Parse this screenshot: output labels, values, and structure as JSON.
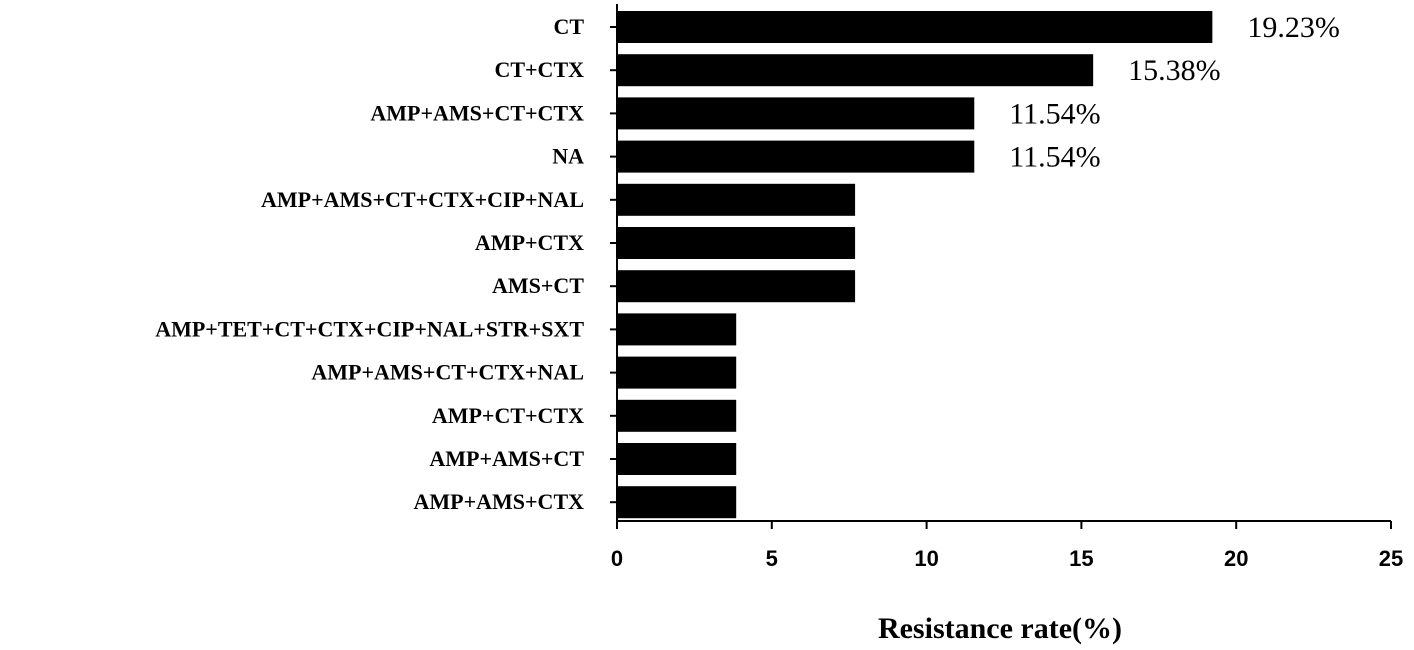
{
  "chart_data": {
    "type": "bar",
    "orientation": "horizontal",
    "categories": [
      "CT",
      "CT+CTX",
      "AMP+AMS+CT+CTX",
      "NA",
      "AMP+AMS+CT+CTX+CIP+NAL",
      "AMP+CTX",
      "AMS+CT",
      "AMP+TET+CT+CTX+CIP+NAL+STR+SXT",
      "AMP+AMS+CT+CTX+NAL",
      "AMP+CT+CTX",
      "AMP+AMS+CT",
      "AMP+AMS+CTX"
    ],
    "values": [
      19.23,
      15.38,
      11.54,
      11.54,
      7.69,
      7.69,
      7.69,
      3.85,
      3.85,
      3.85,
      3.85,
      3.85
    ],
    "data_labels": [
      "19.23%",
      "15.38%",
      "11.54%",
      "11.54%",
      null,
      null,
      null,
      null,
      null,
      null,
      null,
      null
    ],
    "xlabel": "Resistance rate(%)",
    "xlim": [
      0,
      25
    ],
    "xticks": [
      0,
      5,
      10,
      15,
      20,
      25
    ],
    "bar_color": "#000000",
    "grid": false,
    "legend": "none"
  }
}
